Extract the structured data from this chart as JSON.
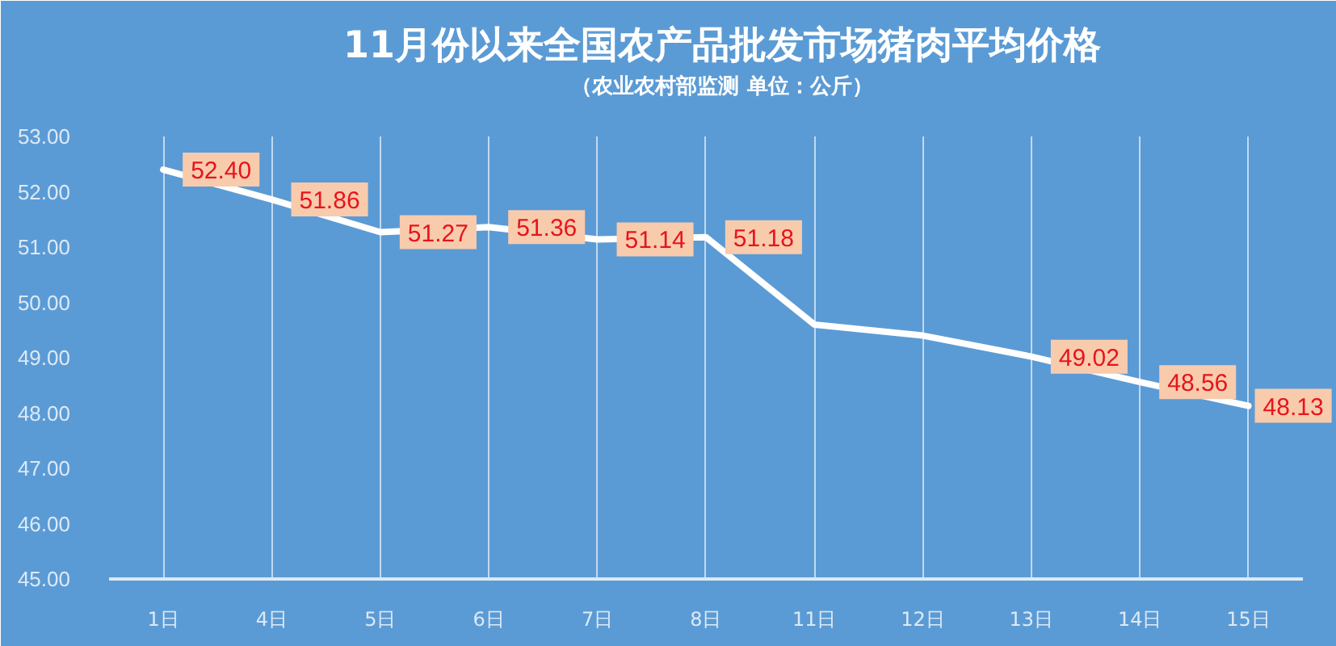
{
  "chart_data": {
    "type": "line",
    "title": "11月份以来全国农产品批发市场猪肉平均价格",
    "subtitle": "（农业农村部监测 单位：公斤）",
    "categories": [
      "1日",
      "4日",
      "5日",
      "6日",
      "7日",
      "8日",
      "11日",
      "12日",
      "13日",
      "14日",
      "15日"
    ],
    "series": [
      {
        "color": "#ffffff",
        "values": [
          52.4,
          51.86,
          51.27,
          51.36,
          51.14,
          51.18,
          49.6,
          49.4,
          49.02,
          48.56,
          48.13
        ],
        "value_labels": [
          "52.40",
          "51.86",
          "51.27",
          "51.36",
          "51.14",
          "51.18",
          null,
          null,
          "49.02",
          "48.56",
          "48.13"
        ]
      }
    ],
    "ylim": [
      45,
      53
    ],
    "yticks": [
      {
        "value": 45,
        "label": "45.00"
      },
      {
        "value": 46,
        "label": "46.00"
      },
      {
        "value": 47,
        "label": "47.00"
      },
      {
        "value": 48,
        "label": "48.00"
      },
      {
        "value": 49,
        "label": "49.00"
      },
      {
        "value": 50,
        "label": "50.00"
      },
      {
        "value": 51,
        "label": "51.00"
      },
      {
        "value": 52,
        "label": "52.00"
      },
      {
        "value": 53,
        "label": "53.00"
      }
    ],
    "grid": "x",
    "line_style": "solid"
  }
}
